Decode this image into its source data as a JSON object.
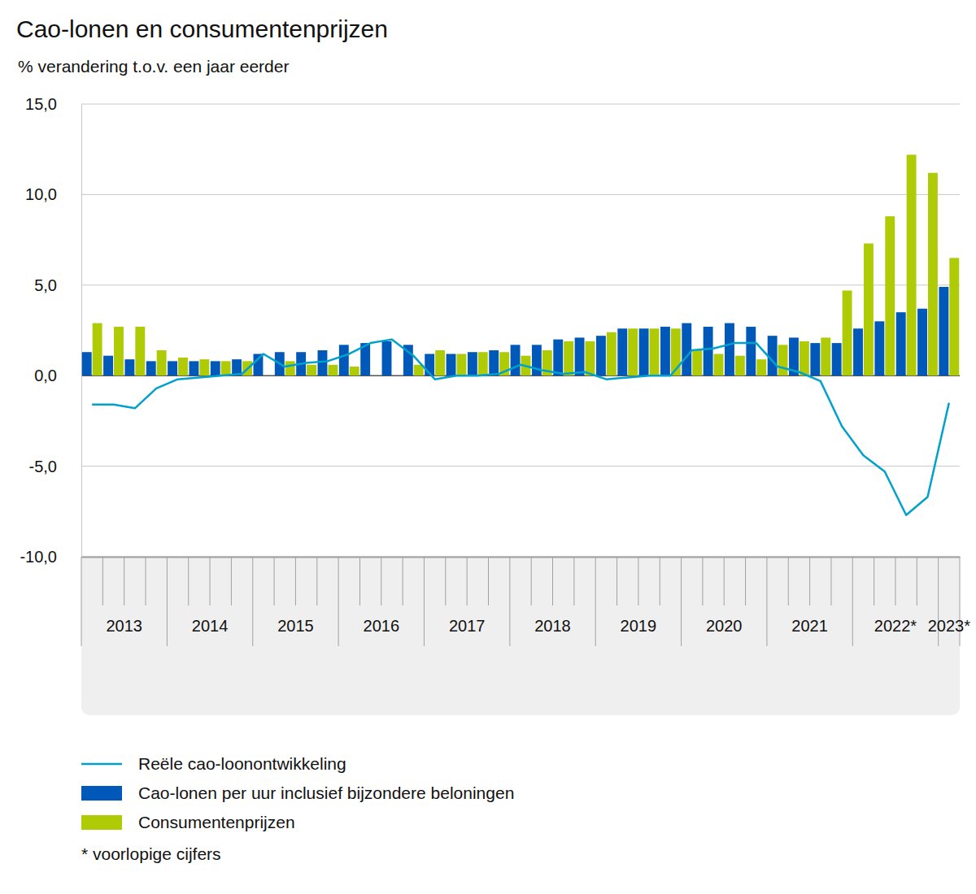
{
  "chart_data": {
    "type": "bar",
    "title": "Cao-lonen en consumentenprijzen",
    "subtitle": "% verandering t.o.v. een jaar eerder",
    "footnote": "* voorlopige cijfers",
    "categories": [
      "2013",
      null,
      null,
      null,
      "2014",
      null,
      null,
      null,
      "2015",
      null,
      null,
      null,
      "2016",
      null,
      null,
      null,
      "2017",
      null,
      null,
      null,
      "2018",
      null,
      null,
      null,
      "2019",
      null,
      null,
      null,
      "2020",
      null,
      null,
      null,
      "2021",
      null,
      null,
      null,
      "2022*",
      null,
      null,
      null,
      "2023*"
    ],
    "series": [
      {
        "name": "Reële cao-loonontwikkeling",
        "type": "line",
        "color": "#00a1cd",
        "values": [
          -1.6,
          -1.6,
          -1.8,
          -0.7,
          -0.2,
          -0.1,
          0.0,
          0.1,
          1.2,
          0.5,
          0.7,
          0.8,
          1.2,
          1.8,
          2.0,
          1.1,
          -0.2,
          0.0,
          0.0,
          0.1,
          0.6,
          0.3,
          0.1,
          0.2,
          -0.2,
          -0.1,
          0.0,
          0.0,
          1.4,
          1.5,
          1.8,
          1.8,
          0.5,
          0.2,
          -0.3,
          -2.8,
          -4.4,
          -5.3,
          -7.7,
          -6.7,
          -1.5
        ]
      },
      {
        "name": "Cao-lonen per uur inclusief bijzondere beloningen",
        "type": "bar",
        "color": "#0058b8",
        "values": [
          1.3,
          1.1,
          0.9,
          0.8,
          0.8,
          0.8,
          0.8,
          0.9,
          1.2,
          1.3,
          1.3,
          1.4,
          1.7,
          1.8,
          1.9,
          1.7,
          1.2,
          1.2,
          1.3,
          1.4,
          1.7,
          1.7,
          2.0,
          2.1,
          2.2,
          2.6,
          2.6,
          2.7,
          2.9,
          2.7,
          2.9,
          2.7,
          2.2,
          2.1,
          1.8,
          1.8,
          2.6,
          3.0,
          3.5,
          3.7,
          4.9
        ]
      },
      {
        "name": "Consumentenprijzen",
        "type": "bar",
        "color": "#afcb05",
        "values": [
          2.9,
          2.7,
          2.7,
          1.4,
          1.0,
          0.9,
          0.8,
          0.8,
          0.0,
          0.8,
          0.6,
          0.6,
          0.5,
          0.0,
          0.0,
          0.6,
          1.4,
          1.2,
          1.3,
          1.3,
          1.1,
          1.4,
          1.9,
          1.9,
          2.4,
          2.6,
          2.6,
          2.6,
          1.4,
          1.2,
          1.1,
          0.9,
          1.7,
          1.9,
          2.1,
          4.7,
          7.3,
          8.8,
          12.2,
          11.2,
          6.5
        ]
      }
    ],
    "ylim": [
      -10,
      15
    ],
    "yticks": [
      {
        "value": -10,
        "label": "-10,0"
      },
      {
        "value": -5,
        "label": "-5,0"
      },
      {
        "value": 0,
        "label": "0,0"
      },
      {
        "value": 5,
        "label": "5,0"
      },
      {
        "value": 10,
        "label": "10,0"
      },
      {
        "value": 15,
        "label": "15,0"
      }
    ],
    "grid": true,
    "legend": "bottom"
  }
}
